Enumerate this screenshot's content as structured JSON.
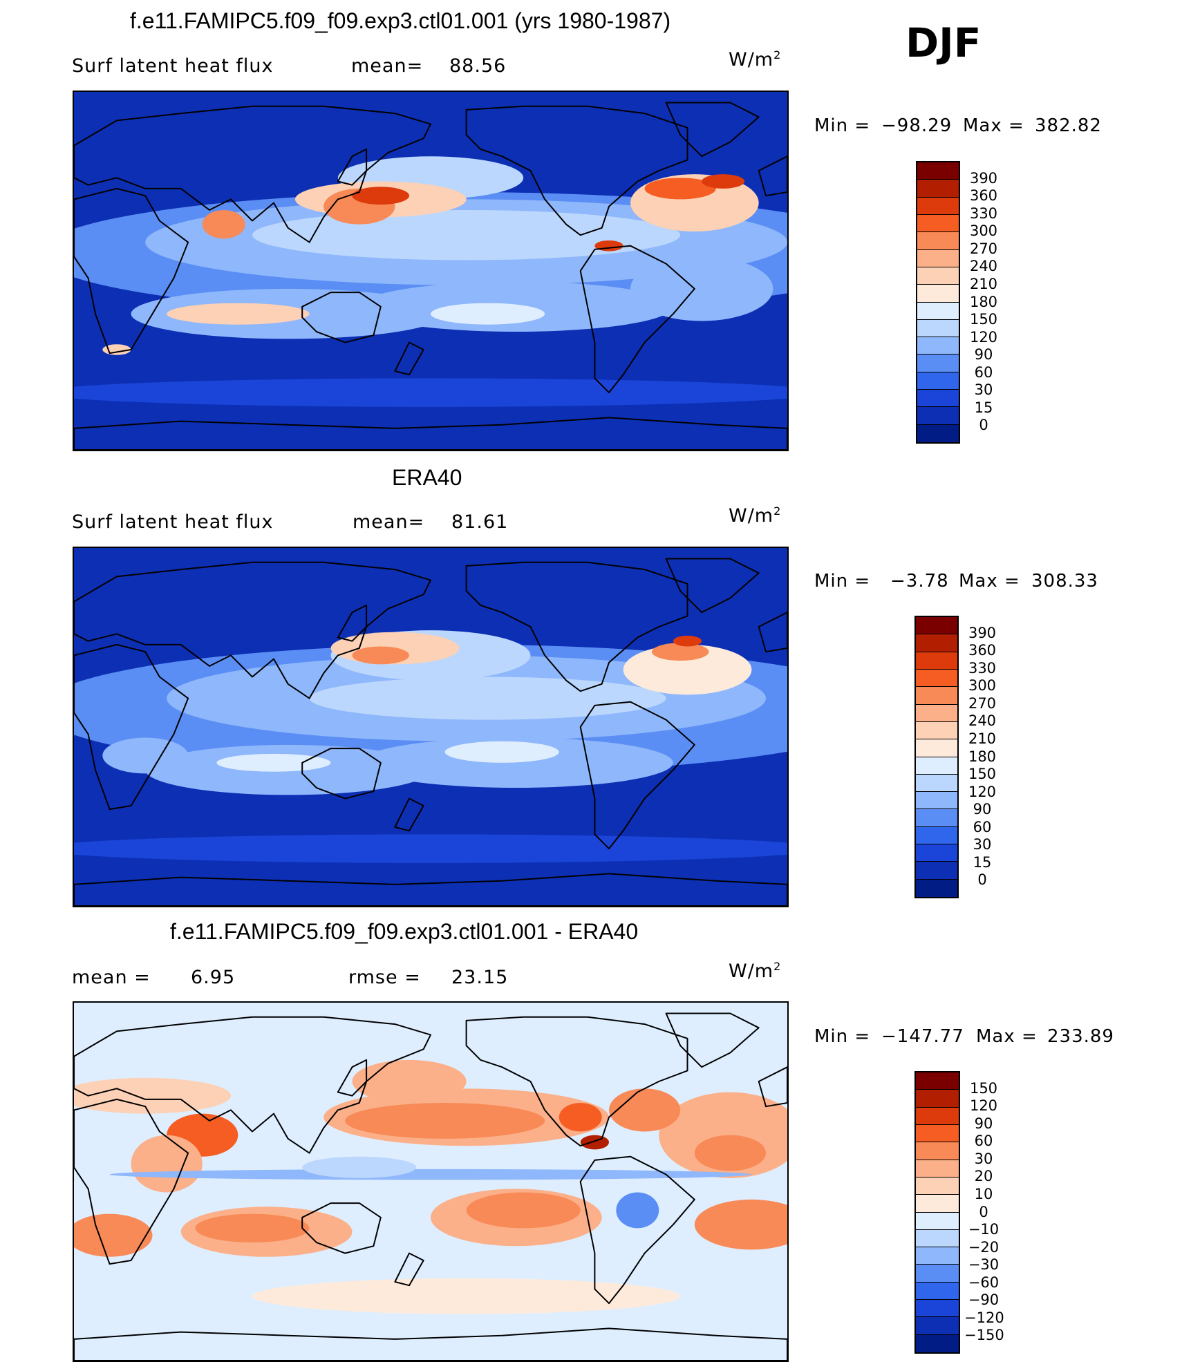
{
  "season": "DJF",
  "units_base": "W/m",
  "units_exp": "2",
  "panels": [
    {
      "title": "f.e11.FAMIPC5.f09_f09.exp3.ctl01.001 (yrs 1980-1987)",
      "left_label": "Surf latent heat flux",
      "mid_label": "mean=",
      "mid_value": "88.56",
      "min_label": "Min =",
      "min_value": "−98.29",
      "max_label": "Max =",
      "max_value": "382.82",
      "scheme": "model",
      "colorbar_levels": [
        "390",
        "360",
        "330",
        "300",
        "270",
        "240",
        "210",
        "180",
        "150",
        "120",
        "90",
        "60",
        "30",
        "15",
        "0"
      ],
      "colorbar_colors": [
        "#7a0000",
        "#b21e00",
        "#dd3b0c",
        "#f55d23",
        "#f88a57",
        "#fbb089",
        "#fcd1b5",
        "#fdeadb",
        "#deeeff",
        "#bcd7fd",
        "#8fb7fb",
        "#5b8ef4",
        "#2f66ec",
        "#1a45d8",
        "#0c2fb4",
        "#021c86"
      ]
    },
    {
      "title": "ERA40",
      "left_label": "Surf latent heat flux",
      "mid_label": "mean=",
      "mid_value": "81.61",
      "min_label": "Min =",
      "min_value": "−3.78",
      "max_label": "Max =",
      "max_value": "308.33",
      "scheme": "obs",
      "colorbar_levels": [
        "390",
        "360",
        "330",
        "300",
        "270",
        "240",
        "210",
        "180",
        "150",
        "120",
        "90",
        "60",
        "30",
        "15",
        "0"
      ],
      "colorbar_colors": [
        "#7a0000",
        "#b21e00",
        "#dd3b0c",
        "#f55d23",
        "#f88a57",
        "#fbb089",
        "#fcd1b5",
        "#fdeadb",
        "#deeeff",
        "#bcd7fd",
        "#8fb7fb",
        "#5b8ef4",
        "#2f66ec",
        "#1a45d8",
        "#0c2fb4",
        "#021c86"
      ]
    },
    {
      "title": "f.e11.FAMIPC5.f09_f09.exp3.ctl01.001 - ERA40",
      "left_label": "mean =",
      "left_value": "6.95",
      "mid_label": "rmse =",
      "mid_value": "23.15",
      "min_label": "Min =",
      "min_value": "−147.77",
      "max_label": "Max =",
      "max_value": "233.89",
      "scheme": "diff",
      "colorbar_levels": [
        "150",
        "120",
        "90",
        "60",
        "30",
        "20",
        "10",
        "0",
        "−10",
        "−20",
        "−30",
        "−60",
        "−90",
        "−120",
        "−150"
      ],
      "colorbar_colors": [
        "#7a0000",
        "#b21e00",
        "#dd3b0c",
        "#f55d23",
        "#f88a57",
        "#fbb089",
        "#fcd1b5",
        "#fdeadb",
        "#deeeff",
        "#bcd7fd",
        "#8fb7fb",
        "#5b8ef4",
        "#2f66ec",
        "#1a45d8",
        "#0c2fb4",
        "#021c86"
      ]
    }
  ]
}
